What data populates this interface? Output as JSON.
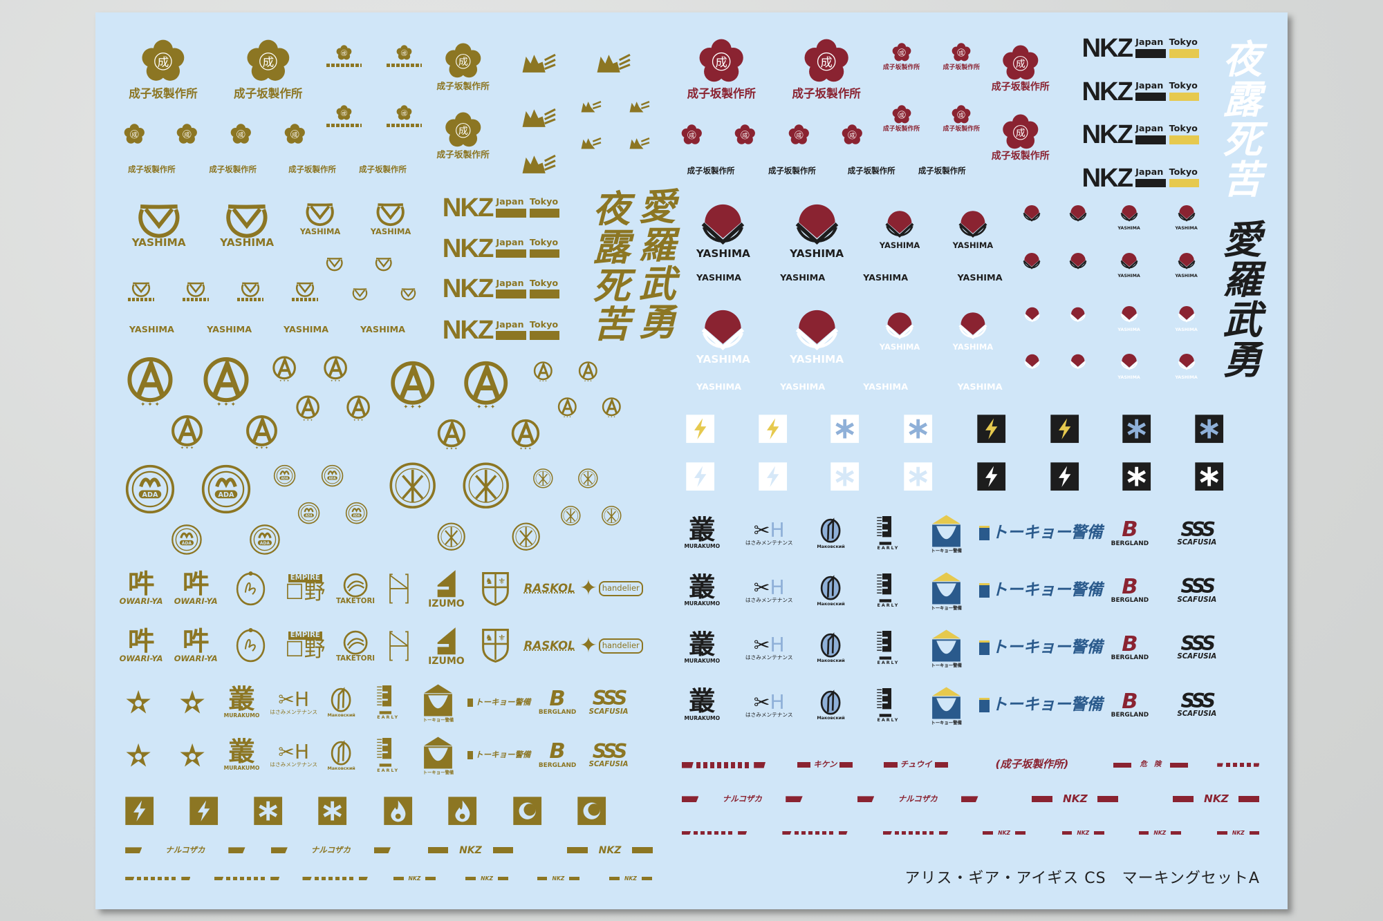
{
  "sheet": {
    "footer": "アリス・ギア・アイギス CS　マーキングセットA"
  },
  "colors": {
    "gold": "#8c7623",
    "red": "#8a2331",
    "dark": "#1d1d1d",
    "blue": "#2a5a8c",
    "light_blue": "#8fb0d8",
    "yellow": "#e6c94e",
    "sheet": "#d0e6f8",
    "white": "#ffffff"
  },
  "labels": {
    "company": "成子坂製作所",
    "flower_glyph": "成",
    "nkz": "NKZ",
    "japan": "Japan",
    "tokyo": "Tokyo",
    "yashima": "YASHIMA",
    "ada": "ADA",
    "kanji_1": "夜露死苦",
    "kanji_2": "愛羅武勇"
  },
  "brands": {
    "owariya": "OWARI-YA",
    "empire": "EMPIRE",
    "taketori": "TAKETORI",
    "izumo": "IZUMO",
    "raskol": "RASKOL",
    "handelier": "handelier",
    "murakumo": "MURAKUMO",
    "murakumo_glyph": "叢",
    "hasami": "はさみメンテナンス",
    "makov": "Маковский",
    "early": "EARLY",
    "tokyo_keibi": "トーキョー警備",
    "bergland": "BERGLAND",
    "scafusia": "SCAFUSIA"
  },
  "stripes": {
    "narukozaka": "ナルコザカ",
    "kiken": "キケン",
    "chuui": "チュウイ",
    "company_bracket": "(成子坂製作所)",
    "kiken_kanji": "危　険",
    "nkz": "NKZ"
  },
  "icons": [
    "lightning-bolt",
    "asterisk",
    "flame",
    "crescent-moon",
    "wolf-head",
    "plum-flower",
    "yashima-emblem",
    "fan-emblem"
  ]
}
